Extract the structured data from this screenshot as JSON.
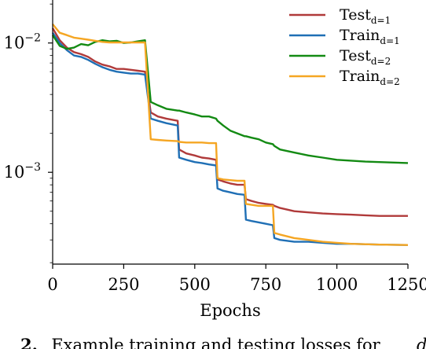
{
  "chart_data": {
    "type": "line",
    "xlabel": "Epochs",
    "ylabel": "",
    "xlim": [
      0,
      1250
    ],
    "ylim": [
      0.000195,
      0.0215
    ],
    "yscale": "log",
    "grid": false,
    "legend_position": "top-right",
    "x_ticks": [
      0,
      250,
      500,
      750,
      1000,
      1250
    ],
    "y_ticks": [
      {
        "value": 0.01,
        "base": "10",
        "exp": "−2"
      },
      {
        "value": 0.001,
        "base": "10",
        "exp": "−3"
      }
    ],
    "x": [
      0,
      25,
      50,
      75,
      100,
      125,
      150,
      175,
      200,
      225,
      250,
      275,
      300,
      325,
      345,
      370,
      400,
      440,
      445,
      470,
      500,
      525,
      550,
      575,
      580,
      600,
      625,
      650,
      675,
      680,
      700,
      725,
      750,
      775,
      780,
      800,
      850,
      900,
      950,
      1000,
      1050,
      1100,
      1150,
      1200,
      1250
    ],
    "series": [
      {
        "name": "Test",
        "sub": "d=1",
        "color": "#b03a3a",
        "values": [
          0.013,
          0.0105,
          0.0092,
          0.0085,
          0.0082,
          0.0078,
          0.0072,
          0.0068,
          0.0066,
          0.0063,
          0.0063,
          0.0062,
          0.0061,
          0.006,
          0.0029,
          0.0027,
          0.0026,
          0.0025,
          0.0015,
          0.0014,
          0.00135,
          0.0013,
          0.00128,
          0.00125,
          0.00088,
          0.00085,
          0.00082,
          0.0008,
          0.0008,
          0.00062,
          0.0006,
          0.00058,
          0.00057,
          0.00056,
          0.00055,
          0.00053,
          0.0005,
          0.00049,
          0.00048,
          0.000475,
          0.00047,
          0.000465,
          0.00046,
          0.00046,
          0.00046
        ]
      },
      {
        "name": "Train",
        "sub": "d=1",
        "color": "#1f6fb5",
        "values": [
          0.012,
          0.01,
          0.0088,
          0.008,
          0.0078,
          0.0074,
          0.0069,
          0.0065,
          0.0062,
          0.006,
          0.0059,
          0.0058,
          0.0058,
          0.0057,
          0.0026,
          0.0025,
          0.0024,
          0.0023,
          0.0013,
          0.00125,
          0.0012,
          0.00118,
          0.00115,
          0.00113,
          0.00075,
          0.00072,
          0.0007,
          0.00068,
          0.00067,
          0.00043,
          0.00042,
          0.00041,
          0.0004,
          0.00039,
          0.00031,
          0.0003,
          0.00029,
          0.00029,
          0.000285,
          0.00028,
          0.00028,
          0.000278,
          0.000276,
          0.000275,
          0.000274
        ]
      },
      {
        "name": "Test",
        "sub": "d=2",
        "color": "#138a13",
        "values": [
          0.0115,
          0.0095,
          0.009,
          0.0092,
          0.0098,
          0.0096,
          0.0102,
          0.0105,
          0.0103,
          0.0104,
          0.01,
          0.0101,
          0.0103,
          0.0105,
          0.0035,
          0.0033,
          0.0031,
          0.003,
          0.003,
          0.0029,
          0.0028,
          0.0027,
          0.0027,
          0.0026,
          0.0025,
          0.0023,
          0.0021,
          0.002,
          0.0019,
          0.0019,
          0.00185,
          0.0018,
          0.0017,
          0.00165,
          0.0016,
          0.0015,
          0.00142,
          0.00135,
          0.0013,
          0.00125,
          0.00123,
          0.00121,
          0.0012,
          0.00119,
          0.00118
        ]
      },
      {
        "name": "Train",
        "sub": "d=2",
        "color": "#f5a623",
        "values": [
          0.014,
          0.012,
          0.0115,
          0.011,
          0.0108,
          0.0106,
          0.0104,
          0.0102,
          0.0101,
          0.0101,
          0.0101,
          0.0101,
          0.0101,
          0.0101,
          0.0018,
          0.00178,
          0.00176,
          0.00174,
          0.00172,
          0.0017,
          0.0017,
          0.0017,
          0.00168,
          0.00168,
          0.0009,
          0.00088,
          0.00087,
          0.00086,
          0.00086,
          0.00057,
          0.00056,
          0.00055,
          0.00055,
          0.00055,
          0.00034,
          0.00033,
          0.00031,
          0.0003,
          0.00029,
          0.000285,
          0.00028,
          0.000278,
          0.000276,
          0.000275,
          0.000274
        ]
      }
    ]
  },
  "caption": {
    "fragment_start": "2.",
    "fragment_text": "  Example training and testing losses for ",
    "fragment_end": "d"
  }
}
